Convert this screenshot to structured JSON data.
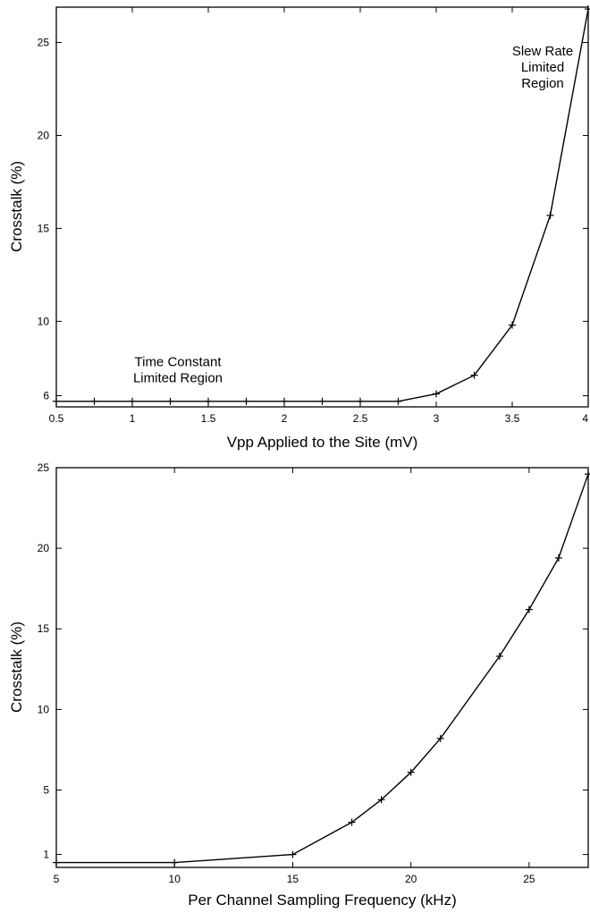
{
  "chart_data": [
    {
      "type": "line",
      "title": "",
      "xlabel": "Vpp Applied to the Site (mV)",
      "ylabel": "Crosstalk (%)",
      "xlim": [
        0.5,
        4
      ],
      "ylim": [
        5.4,
        26.9
      ],
      "xticks": [
        0.5,
        1,
        1.5,
        2,
        2.5,
        3,
        3.5,
        4
      ],
      "xtick_labels": [
        "0.5",
        "1",
        "1.5",
        "2",
        "2.5",
        "3",
        "3.5",
        "4"
      ],
      "yticks": [
        6,
        10,
        15,
        20,
        25
      ],
      "ytick_labels": [
        "6",
        "10",
        "15",
        "20",
        "25"
      ],
      "grid": false,
      "series": [
        {
          "x": [
            0.5,
            0.75,
            1,
            1.25,
            1.5,
            1.75,
            2,
            2.25,
            2.5,
            2.75,
            3,
            3.25,
            3.5,
            3.75,
            4
          ],
          "y": [
            5.7,
            5.7,
            5.7,
            5.7,
            5.7,
            5.7,
            5.7,
            5.7,
            5.7,
            5.7,
            6.1,
            7.1,
            9.8,
            15.7,
            26.8
          ],
          "marker": "+",
          "color": "#000000"
        }
      ],
      "annotations": [
        {
          "lines": [
            "Slew Rate",
            "Limited",
            "Region"
          ],
          "x": 3.7,
          "y": 24.3
        },
        {
          "lines": [
            "Time Constant",
            "Limited Region"
          ],
          "x": 1.3,
          "y": 7.6
        }
      ]
    },
    {
      "type": "line",
      "title": "",
      "xlabel": "Per Channel Sampling Frequency (kHz)",
      "ylabel": "Crosstalk (%)",
      "xlim": [
        5,
        27.5
      ],
      "ylim": [
        0.2,
        25
      ],
      "xticks": [
        5,
        10,
        15,
        20,
        25
      ],
      "xtick_labels": [
        "5",
        "10",
        "15",
        "20",
        "25"
      ],
      "yticks": [
        1,
        5,
        10,
        15,
        20,
        25
      ],
      "ytick_labels": [
        "1",
        "5",
        "10",
        "15",
        "20",
        "25"
      ],
      "grid": false,
      "series": [
        {
          "x": [
            5,
            10,
            15,
            17.5,
            18.75,
            20,
            21.25,
            23.75,
            25,
            26.25,
            27.5
          ],
          "y": [
            0.5,
            0.5,
            1.0,
            3.0,
            4.4,
            6.1,
            8.2,
            13.3,
            16.2,
            19.4,
            24.6
          ],
          "marker": "+",
          "color": "#000000"
        }
      ],
      "annotations": []
    }
  ]
}
